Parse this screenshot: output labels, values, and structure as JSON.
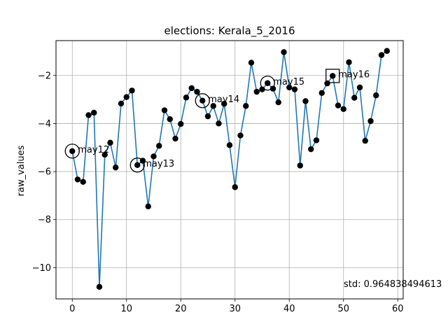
{
  "chart_data": {
    "type": "line",
    "title": "elections: Kerala_5_2016",
    "xlabel": "",
    "ylabel": "raw_values",
    "xlim": [
      -3,
      61
    ],
    "ylim": [
      -11.3,
      -0.55
    ],
    "xticks": [
      0,
      10,
      20,
      30,
      40,
      50,
      60
    ],
    "yticks": [
      -10,
      -8,
      -6,
      -4,
      -2
    ],
    "xtick_labels": [
      "0",
      "10",
      "20",
      "30",
      "40",
      "50",
      "60"
    ],
    "ytick_labels": [
      "−10",
      "−8",
      "−6",
      "−4",
      "−2"
    ],
    "grid": true,
    "series": [
      {
        "color": "#1f77b4",
        "marker_color": "#000000",
        "x": [
          0,
          1,
          2,
          3,
          4,
          5,
          6,
          7,
          8,
          9,
          10,
          11,
          12,
          13,
          14,
          15,
          16,
          17,
          18,
          19,
          20,
          21,
          22,
          23,
          24,
          25,
          26,
          27,
          28,
          29,
          30,
          31,
          32,
          33,
          34,
          35,
          36,
          37,
          38,
          39,
          40,
          41,
          42,
          43,
          44,
          45,
          46,
          47,
          48,
          49,
          50,
          51,
          52,
          53,
          54,
          55,
          56,
          57,
          58
        ],
        "y": [
          -5.15,
          -6.33,
          -6.43,
          -3.65,
          -3.55,
          -10.8,
          -5.3,
          -4.8,
          -5.83,
          -3.17,
          -2.9,
          -2.63,
          -5.73,
          -5.55,
          -7.45,
          -5.37,
          -4.93,
          -3.45,
          -3.82,
          -4.63,
          -4.02,
          -2.92,
          -2.53,
          -2.68,
          -3.05,
          -3.7,
          -3.27,
          -4,
          -3.18,
          -4.9,
          -6.65,
          -4.5,
          -3.27,
          -1.47,
          -2.68,
          -2.58,
          -2.32,
          -2.55,
          -3.12,
          -1.03,
          -2.5,
          -2.58,
          -5.75,
          -3.07,
          -5.07,
          -4.7,
          -2.73,
          -2.33,
          -2.02,
          -3.25,
          -3.4,
          -1.45,
          -2.93,
          -2.5,
          -4.72,
          -3.9,
          -2.83,
          -1.15,
          -0.98
        ]
      }
    ],
    "annotations": [
      {
        "label": "may12",
        "x": 0,
        "y": -5.15,
        "marker": "circle"
      },
      {
        "label": "may13",
        "x": 12,
        "y": -5.73,
        "marker": "circle"
      },
      {
        "label": "may14",
        "x": 24,
        "y": -3.05,
        "marker": "circle"
      },
      {
        "label": "may15",
        "x": 36,
        "y": -2.32,
        "marker": "circle"
      },
      {
        "label": "may16",
        "x": 48,
        "y": -2.02,
        "marker": "square"
      }
    ],
    "std_text": "std: 0.964838494613"
  }
}
